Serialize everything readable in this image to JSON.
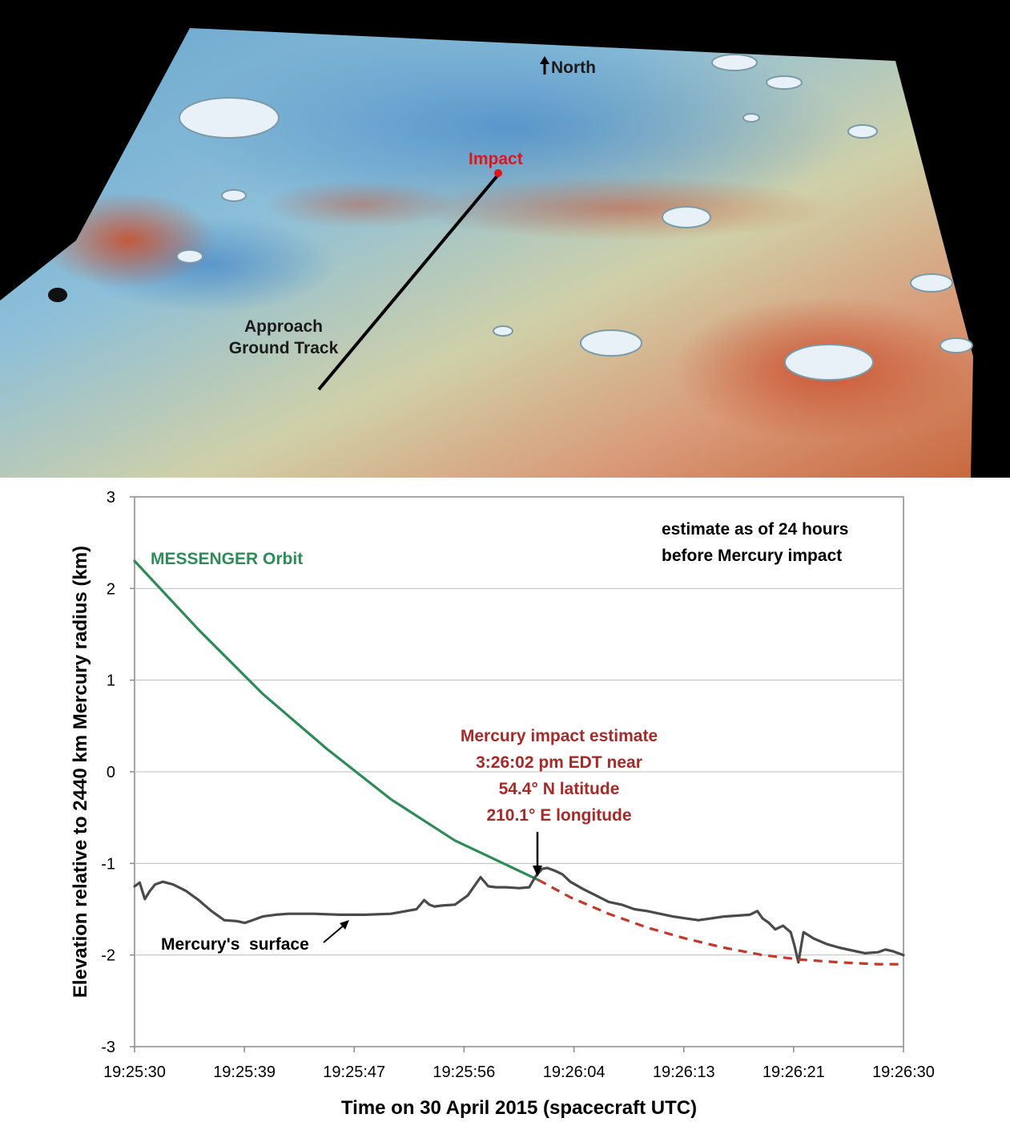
{
  "map": {
    "north_label": "North",
    "impact_label": "Impact",
    "track_label_line1": "Approach",
    "track_label_line2": "Ground Track",
    "colors": {
      "impact": "#e0141b",
      "track": "#000000",
      "text": "#1a1a1a"
    }
  },
  "chart_data": {
    "type": "line",
    "xlabel": "Time on 30 April 2015 (spacecraft UTC)",
    "ylabel": "Elevation relative to 2440 km Mercury radius (km)",
    "x_ticks": [
      "19:25:30",
      "19:25:39",
      "19:25:47",
      "19:25:56",
      "19:26:04",
      "19:26:13",
      "19:26:21",
      "19:26:30"
    ],
    "x_tick_seconds": [
      0,
      8.57,
      17.14,
      25.71,
      34.29,
      42.86,
      51.43,
      60
    ],
    "xlim_seconds": [
      0,
      60
    ],
    "y_ticks": [
      3,
      2,
      1,
      0,
      -1,
      -2,
      -3
    ],
    "ylim": [
      -3,
      3
    ],
    "grid": "horizontal",
    "annotations": {
      "estimate_line1": "estimate as of 24 hours",
      "estimate_line2": "before Mercury impact",
      "orbit_label": "MESSENGER Orbit",
      "impact_line1": "Mercury impact estimate",
      "impact_line2": "3:26:02 pm EDT near",
      "impact_line3": "54.4° N latitude",
      "impact_line4": "210.1° E longitude",
      "surface_label": "Mercury's  surface"
    },
    "series": [
      {
        "name": "MESSENGER Orbit",
        "color": "#2e8b57",
        "x": [
          0,
          5,
          10,
          15,
          20,
          25,
          31.5
        ],
        "y": [
          2.3,
          1.55,
          0.85,
          0.25,
          -0.3,
          -0.75,
          -1.18
        ]
      },
      {
        "name": "Mercury's surface",
        "color": "#4a4a4a",
        "x": [
          0,
          0.4,
          0.8,
          1.2,
          1.6,
          2.2,
          3,
          4,
          5,
          6,
          7,
          8,
          8.6,
          9.2,
          10,
          11,
          12,
          14,
          16,
          18,
          20,
          22,
          22.6,
          23,
          23.4,
          24,
          25,
          26,
          26.5,
          27,
          27.6,
          28.2,
          29,
          30,
          30.8,
          31.3,
          31.8,
          32.2,
          32.8,
          33.4,
          34,
          35,
          36,
          37,
          38,
          39,
          40,
          41,
          42,
          43,
          44,
          45,
          46,
          47,
          48,
          48.6,
          49,
          49.5,
          50,
          50.6,
          51.2,
          51.5,
          51.8,
          52.2,
          53,
          54,
          55,
          56,
          57,
          58,
          58.6,
          59.2,
          60
        ],
        "y": [
          -1.25,
          -1.21,
          -1.39,
          -1.3,
          -1.23,
          -1.2,
          -1.23,
          -1.3,
          -1.4,
          -1.52,
          -1.62,
          -1.63,
          -1.65,
          -1.62,
          -1.58,
          -1.56,
          -1.55,
          -1.55,
          -1.56,
          -1.56,
          -1.55,
          -1.5,
          -1.4,
          -1.45,
          -1.47,
          -1.46,
          -1.45,
          -1.35,
          -1.25,
          -1.15,
          -1.25,
          -1.26,
          -1.26,
          -1.27,
          -1.26,
          -1.14,
          -1.06,
          -1.05,
          -1.08,
          -1.12,
          -1.2,
          -1.28,
          -1.35,
          -1.42,
          -1.45,
          -1.5,
          -1.52,
          -1.55,
          -1.58,
          -1.6,
          -1.62,
          -1.6,
          -1.58,
          -1.57,
          -1.56,
          -1.52,
          -1.6,
          -1.65,
          -1.72,
          -1.68,
          -1.75,
          -1.9,
          -2.08,
          -1.75,
          -1.82,
          -1.88,
          -1.92,
          -1.95,
          -1.98,
          -1.97,
          -1.94,
          -1.96,
          -2.0
        ]
      },
      {
        "name": "",
        "color": "#c0392b",
        "style": "dashed",
        "x": [
          31.5,
          34,
          37,
          40,
          43,
          46,
          49,
          52,
          55,
          58,
          60
        ],
        "y": [
          -1.18,
          -1.37,
          -1.55,
          -1.7,
          -1.82,
          -1.92,
          -2.0,
          -2.05,
          -2.08,
          -2.1,
          -2.1
        ]
      }
    ]
  }
}
